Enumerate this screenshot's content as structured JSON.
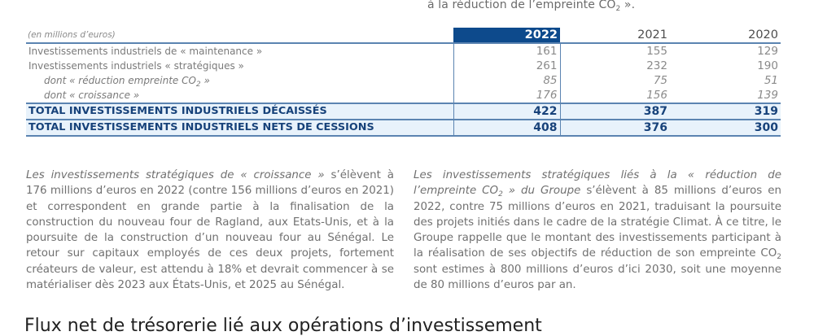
{
  "top_caption": {
    "before": "à la réduction de l’empreinte CO",
    "sub": "2",
    "after": " »."
  },
  "table": {
    "unit_label": "(en millions d’euros)",
    "years": [
      "2022",
      "2021",
      "2020"
    ],
    "rows": [
      {
        "label": "Investissements industriels de « maintenance »",
        "values": [
          "161",
          "155",
          "129"
        ]
      },
      {
        "label": "Investissements industriels « stratégiques »",
        "values": [
          "261",
          "232",
          "190"
        ]
      },
      {
        "label_before": "dont « réduction empreinte CO",
        "label_sub": "2",
        "label_after": " »",
        "values": [
          "85",
          "75",
          "51"
        ]
      },
      {
        "label": "dont « croissance »",
        "values": [
          "176",
          "156",
          "139"
        ]
      }
    ],
    "totals": [
      {
        "label": "TOTAL INVESTISSEMENTS INDUSTRIELS DÉCAISSÉS",
        "values": [
          "422",
          "387",
          "319"
        ]
      },
      {
        "label": "TOTAL INVESTISSEMENTS INDUSTRIELS NETS DE CESSIONS",
        "values": [
          "408",
          "376",
          "300"
        ]
      }
    ]
  },
  "paragraph_left": {
    "italic": "Les investissements stratégiques de « croissance »",
    "text": " s’élèvent à 176 millions d’euros en 2022 (contre 156 millions d’euros en 2021) et correspondent en grande partie à la finalisation de la construction du nouveau four de Ragland, aux Etats-Unis, et à la poursuite de la construction d’un nouveau four au Sénégal. Le retour sur capitaux employés de ces deux projets, fortement créateurs de valeur, est attendu à 18% et devrait commencer à se matérialiser dès 2023 aux États-Unis, et 2025 au Sénégal."
  },
  "paragraph_right": {
    "italic_before": "Les investissements stratégiques liés à la « réduction de l’empreinte CO",
    "italic_sub": "2",
    "italic_after": " » du Groupe",
    "text_before": " s’élèvent à 85 millions d’euros en 2022, contre 75 millions d’euros en 2021, traduisant la poursuite des projets initiés dans le cadre de la stratégie Climat. À ce titre, le Groupe rappelle que le montant des investissements participant à la réalisation de ses objectifs de réduction de son empreinte CO",
    "text_sub": "2",
    "text_after": " sont estimes à 800 millions d’euros d’ici 2030, soit une moyenne de 80 millions d’euros par an."
  },
  "bottom_heading": "Flux net de trésorerie lié aux opérations d’investissement",
  "colors": {
    "accent": "#0d4a8c",
    "rule": "#5b84b1",
    "total_bg": "#e8f2fb",
    "total_text": "#17427a"
  }
}
